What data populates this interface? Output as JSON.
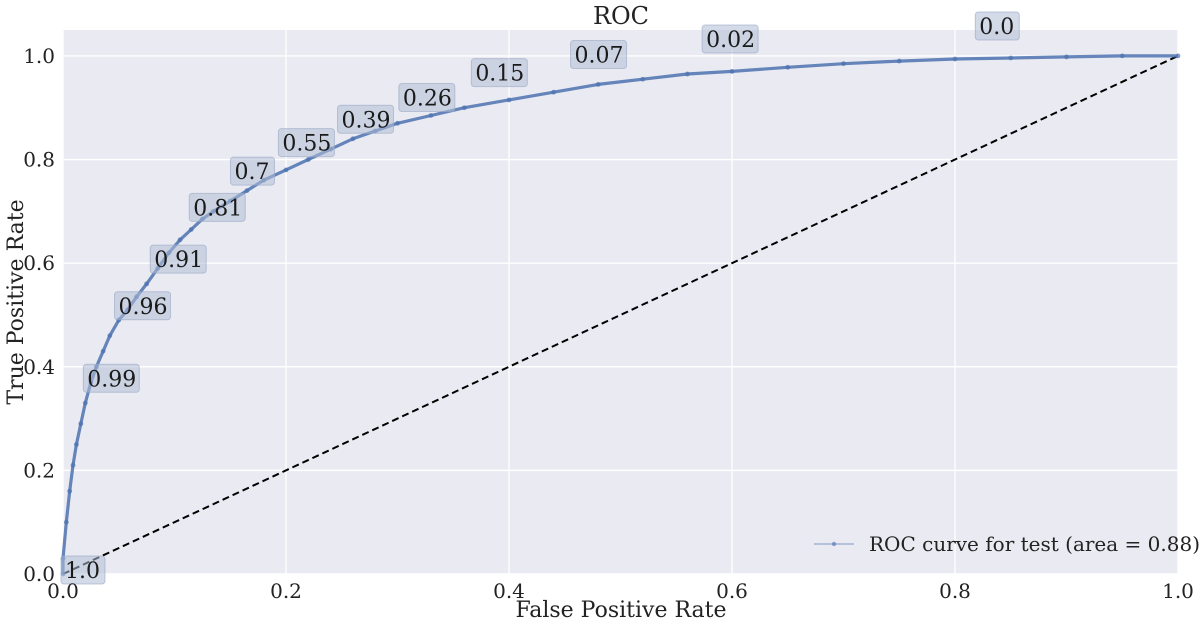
{
  "chart_data": {
    "type": "line",
    "title": "ROC",
    "xlabel": "False Positive Rate",
    "ylabel": "True Positive Rate",
    "xlim": [
      0.0,
      1.0
    ],
    "ylim": [
      0.0,
      1.05
    ],
    "grid": true,
    "legend_position": "bottom-right",
    "x_ticks": [
      "0.0",
      "0.2",
      "0.4",
      "0.6",
      "0.8",
      "1.0"
    ],
    "y_ticks": [
      "0.0",
      "0.2",
      "0.4",
      "0.6",
      "0.8",
      "1.0"
    ],
    "colors": {
      "background": "#eaeaf2",
      "grid": "#ffffff",
      "curve": "#4c72b0",
      "diagonal": "#000000"
    },
    "series": [
      {
        "name": "ROC curve for test (area = 0.88)",
        "style": "line-with-markers",
        "x": [
          0.0,
          0.0,
          0.003,
          0.006,
          0.009,
          0.012,
          0.016,
          0.02,
          0.025,
          0.03,
          0.036,
          0.042,
          0.05,
          0.058,
          0.066,
          0.075,
          0.085,
          0.095,
          0.105,
          0.115,
          0.125,
          0.135,
          0.15,
          0.165,
          0.18,
          0.2,
          0.22,
          0.24,
          0.26,
          0.28,
          0.3,
          0.33,
          0.36,
          0.4,
          0.44,
          0.48,
          0.52,
          0.56,
          0.6,
          0.65,
          0.7,
          0.75,
          0.8,
          0.85,
          0.9,
          0.95,
          1.0
        ],
        "y": [
          0.0,
          0.03,
          0.1,
          0.16,
          0.21,
          0.25,
          0.29,
          0.33,
          0.37,
          0.4,
          0.43,
          0.46,
          0.49,
          0.51,
          0.535,
          0.56,
          0.59,
          0.62,
          0.645,
          0.665,
          0.685,
          0.7,
          0.72,
          0.74,
          0.76,
          0.78,
          0.8,
          0.82,
          0.84,
          0.855,
          0.87,
          0.885,
          0.9,
          0.915,
          0.93,
          0.945,
          0.955,
          0.965,
          0.97,
          0.978,
          0.985,
          0.99,
          0.994,
          0.996,
          0.998,
          1.0,
          1.0
        ]
      },
      {
        "name": "",
        "style": "dashed",
        "x": [
          0.0,
          1.0
        ],
        "y": [
          0.0,
          1.0
        ]
      }
    ],
    "threshold_labels": [
      {
        "text": "1.0",
        "x": 0.0,
        "y": 0.0
      },
      {
        "text": "0.99",
        "x": 0.02,
        "y": 0.37
      },
      {
        "text": "0.96",
        "x": 0.048,
        "y": 0.51
      },
      {
        "text": "0.91",
        "x": 0.08,
        "y": 0.6
      },
      {
        "text": "0.81",
        "x": 0.115,
        "y": 0.7
      },
      {
        "text": "0.7",
        "x": 0.152,
        "y": 0.77
      },
      {
        "text": "0.55",
        "x": 0.195,
        "y": 0.825
      },
      {
        "text": "0.39",
        "x": 0.248,
        "y": 0.87
      },
      {
        "text": "0.26",
        "x": 0.303,
        "y": 0.912
      },
      {
        "text": "0.15",
        "x": 0.368,
        "y": 0.96
      },
      {
        "text": "0.07",
        "x": 0.457,
        "y": 0.995
      },
      {
        "text": "0.02",
        "x": 0.575,
        "y": 1.025
      },
      {
        "text": "0.0",
        "x": 0.82,
        "y": 1.05
      }
    ]
  }
}
